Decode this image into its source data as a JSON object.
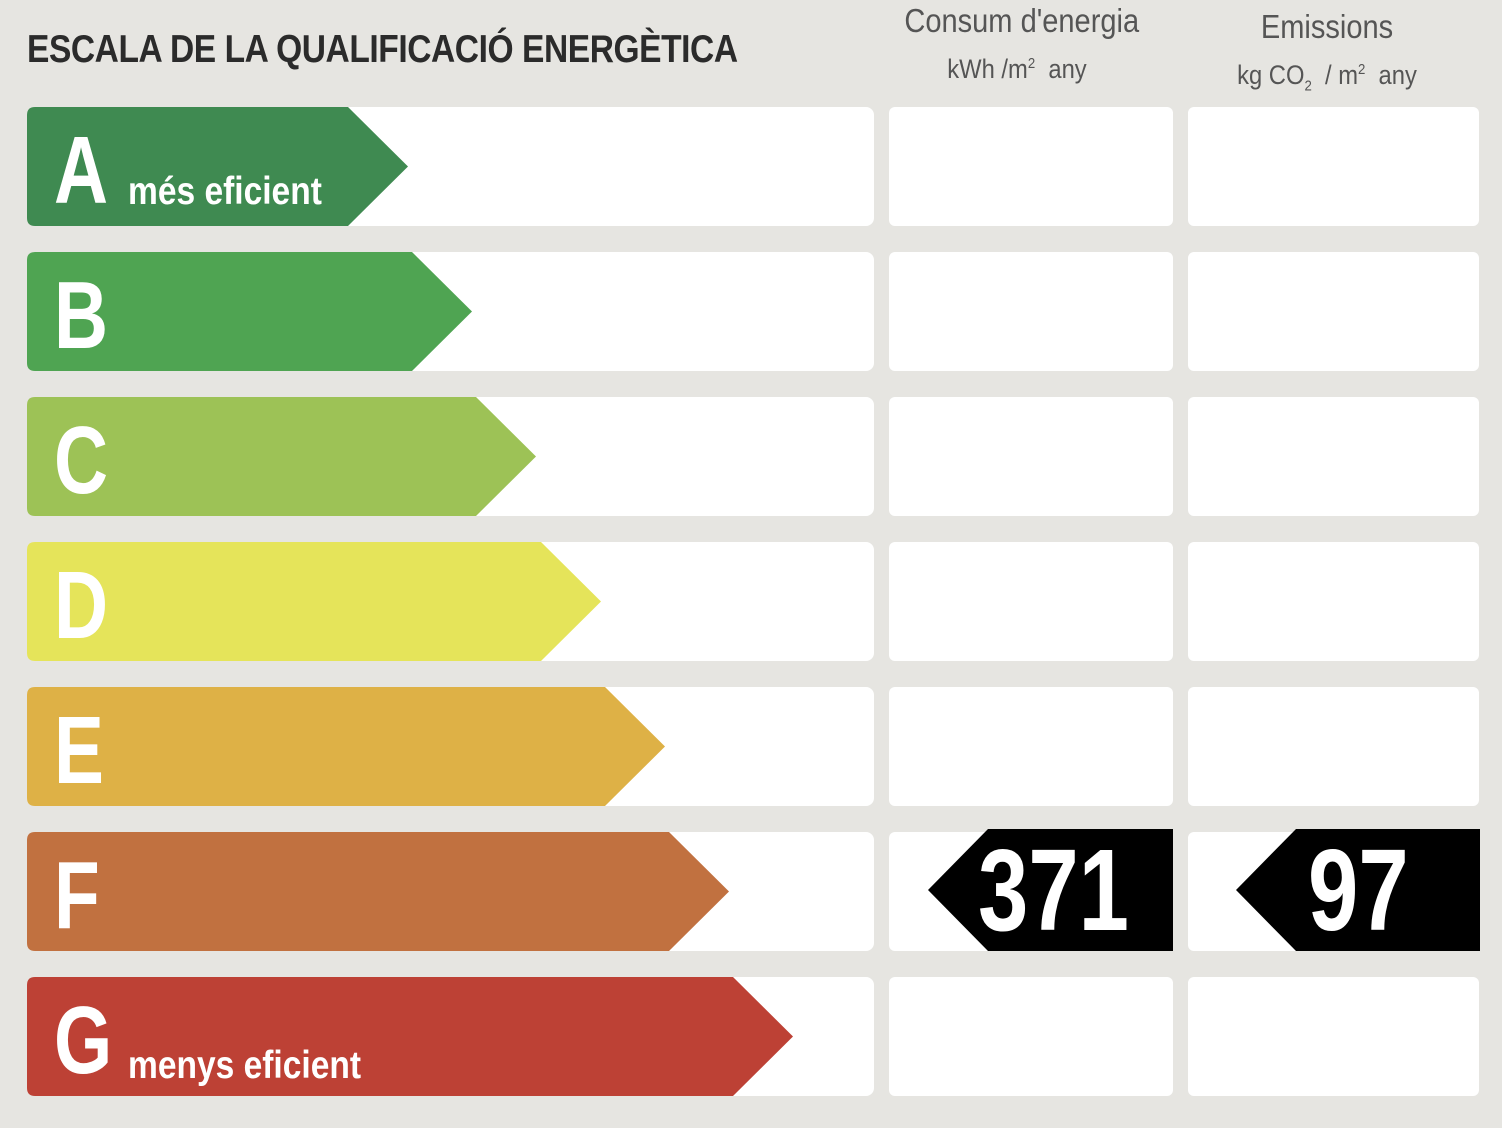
{
  "title": "ESCALA DE LA QUALIFICACIÓ ENERGÈTICA",
  "columns": {
    "energy": {
      "label": "Consum d'energia",
      "unit_pre": "kWh /m",
      "unit_sup": "2",
      "unit_post": "any"
    },
    "emissions": {
      "label": "Emissions",
      "unit_pre": "kg CO",
      "unit_sub": "2",
      "unit_mid": "/ m",
      "unit_sup": "2",
      "unit_post": "any"
    }
  },
  "ratings": [
    {
      "letter": "A",
      "label": "més eficient",
      "color": "#3f8a51"
    },
    {
      "letter": "B",
      "label": "",
      "color": "#4fa452"
    },
    {
      "letter": "C",
      "label": "",
      "color": "#9dc256"
    },
    {
      "letter": "D",
      "label": "",
      "color": "#e5e45a"
    },
    {
      "letter": "E",
      "label": "",
      "color": "#deb146"
    },
    {
      "letter": "F",
      "label": "",
      "color": "#c17140"
    },
    {
      "letter": "G",
      "label": "menys eficient",
      "color": "#bd4135"
    }
  ],
  "current": {
    "rating": "F",
    "energy_value": "371",
    "emissions_value": "97",
    "marker_color": "#000000"
  }
}
